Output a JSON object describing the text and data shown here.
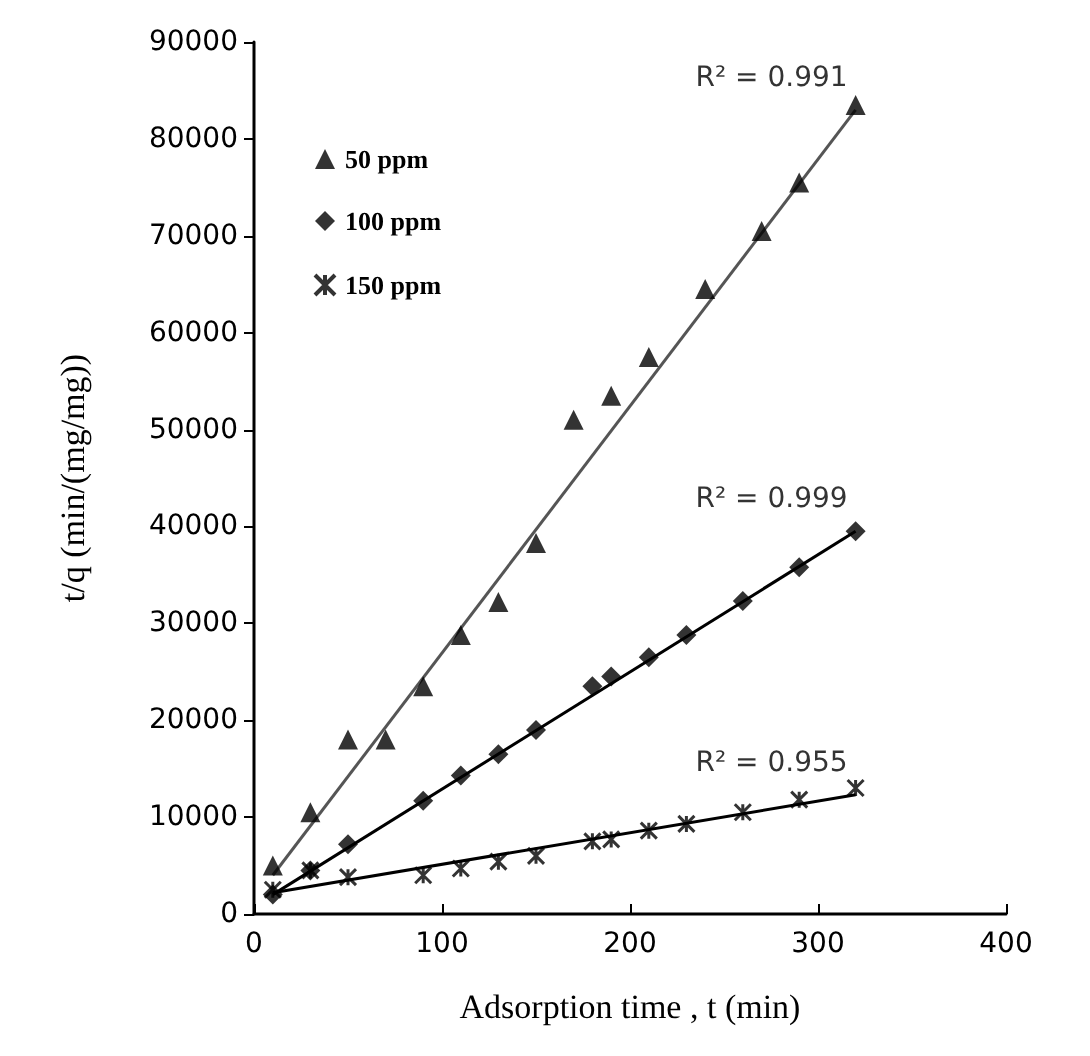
{
  "chart_data": {
    "type": "scatter",
    "xlabel": "Adsorption time , t (min)",
    "ylabel": "t/q (min/(mg/mg))",
    "xlim": [
      0,
      400
    ],
    "xticks": [
      0,
      100,
      200,
      300,
      400
    ],
    "ylim": [
      0,
      90000
    ],
    "yticks": [
      0,
      10000,
      20000,
      30000,
      40000,
      50000,
      60000,
      70000,
      80000,
      90000
    ],
    "grid": false,
    "legend": "top left",
    "series": [
      {
        "name": "50 ppm",
        "color": "#000000",
        "marker": "triangle",
        "x": [
          10,
          30,
          50,
          70,
          90,
          110,
          130,
          150,
          170,
          190,
          210,
          240,
          270,
          290,
          320
        ],
        "values": [
          5000,
          10500,
          18000,
          18000,
          23500,
          28800,
          32200,
          38300,
          51000,
          53500,
          57500,
          64500,
          70500,
          75500,
          83500
        ]
      },
      {
        "name": "100 ppm",
        "color": "#000000",
        "marker": "diamond",
        "x": [
          10,
          30,
          50,
          90,
          110,
          130,
          150,
          180,
          190,
          210,
          230,
          260,
          290,
          320
        ],
        "values": [
          2000,
          4500,
          7200,
          11700,
          14300,
          16500,
          19000,
          23500,
          24500,
          26500,
          28800,
          32300,
          35800,
          39500
        ]
      },
      {
        "name": "150 ppm",
        "color": "#000000",
        "marker": "cross",
        "x": [
          10,
          30,
          50,
          90,
          110,
          130,
          150,
          180,
          190,
          210,
          230,
          260,
          290,
          320
        ],
        "values": [
          2500,
          4500,
          3800,
          4000,
          4700,
          5400,
          6000,
          7500,
          7700,
          8600,
          9300,
          10500,
          11800,
          13000
        ]
      },
      {
        "type": "line",
        "color": "#555555",
        "marker": "none",
        "x": [
          10,
          320
        ],
        "values": [
          4000,
          83000
        ]
      },
      {
        "type": "line",
        "color": "#000000",
        "marker": "none",
        "x": [
          10,
          320
        ],
        "values": [
          2000,
          39500
        ]
      },
      {
        "type": "line",
        "color": "#000000",
        "marker": "none",
        "x": [
          10,
          320
        ],
        "values": [
          2200,
          12300
        ]
      }
    ],
    "annotations": [
      "R² = 0.991",
      "R² = 0.999",
      "R² = 0.955"
    ]
  }
}
